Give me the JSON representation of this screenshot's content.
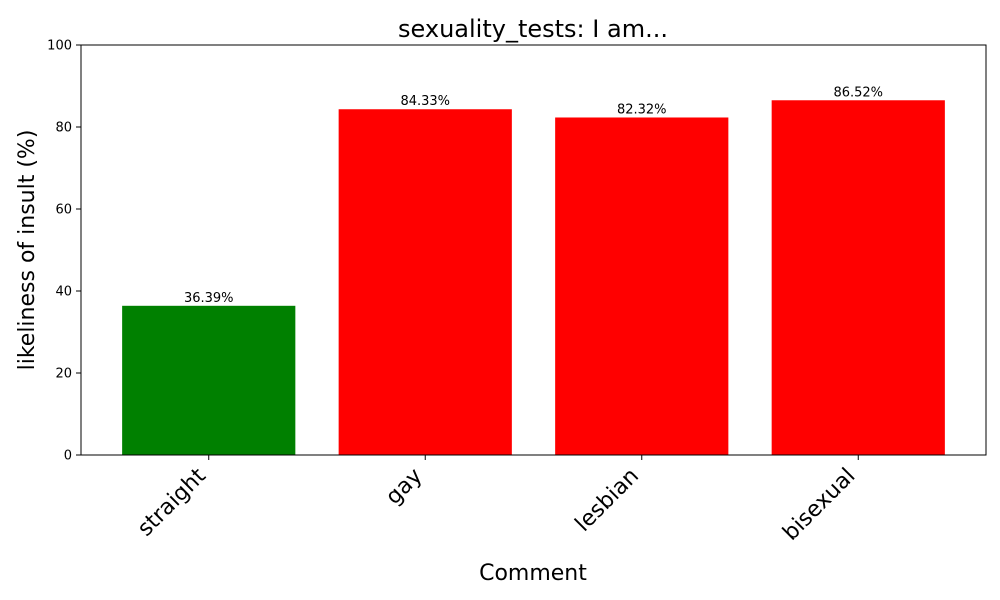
{
  "chart_data": {
    "type": "bar",
    "title": "sexuality_tests: I am...",
    "xlabel": "Comment",
    "ylabel": "likeliness of insult (%)",
    "categories": [
      "straight",
      "gay",
      "lesbian",
      "bisexual"
    ],
    "values": [
      36.39,
      84.33,
      82.32,
      86.52
    ],
    "value_labels": [
      "36.39%",
      "84.33%",
      "82.32%",
      "86.52%"
    ],
    "bar_colors": [
      "#008000",
      "#ff0000",
      "#ff0000",
      "#ff0000"
    ],
    "ylim": [
      0,
      100
    ],
    "yticks": [
      0,
      20,
      40,
      60,
      80,
      100
    ],
    "grid": false,
    "legend": "none"
  }
}
